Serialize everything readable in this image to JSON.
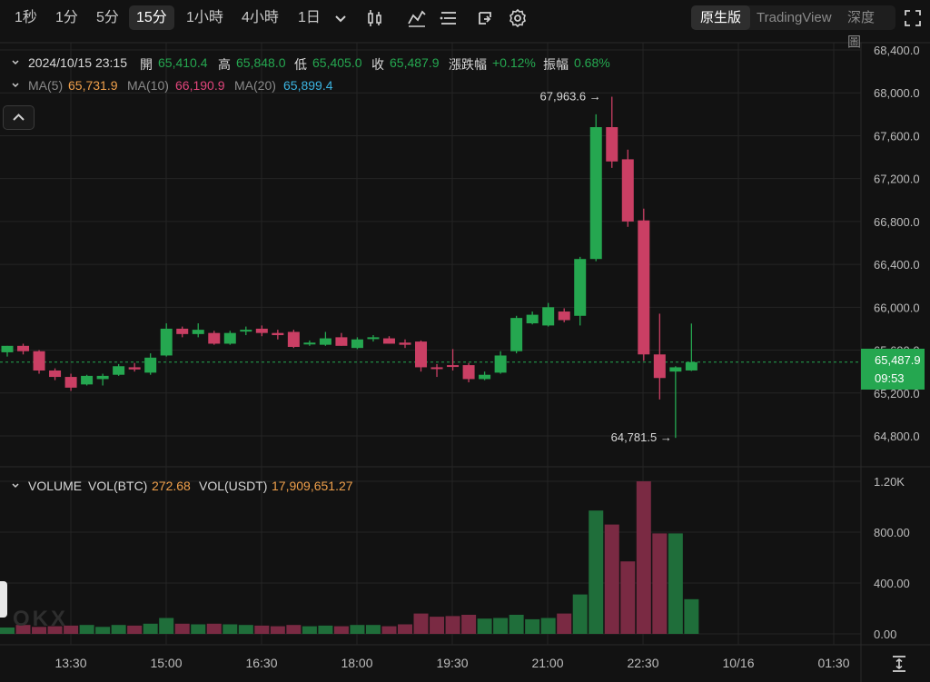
{
  "toolbar": {
    "timeframes": [
      "1秒",
      "1分",
      "5分",
      "15分",
      "1小時",
      "4小時",
      "1日"
    ],
    "active_timeframe": "15分",
    "icons": [
      "chevron-down-icon",
      "candlestick-type-icon",
      "indicator-icon",
      "drawing-tools-icon",
      "share-icon",
      "settings-icon"
    ],
    "views": [
      "原生版",
      "TradingView",
      "深度圖"
    ],
    "active_view": "原生版"
  },
  "ohlc": {
    "datetime": "2024/10/15 23:15",
    "open_label": "開",
    "open": "65,410.4",
    "high_label": "高",
    "high": "65,848.0",
    "low_label": "低",
    "low": "65,405.0",
    "close_label": "收",
    "close": "65,487.9",
    "change_label": "漲跌幅",
    "change": "+0.12%",
    "amplitude_label": "振幅",
    "amplitude": "0.68%"
  },
  "ma": {
    "ma5_label": "MA(5)",
    "ma5": "65,731.9",
    "ma10_label": "MA(10)",
    "ma10": "66,190.9",
    "ma20_label": "MA(20)",
    "ma20": "65,899.4"
  },
  "volume": {
    "label": "VOLUME",
    "btc_label": "VOL(BTC)",
    "btc": "272.68",
    "usdt_label": "VOL(USDT)",
    "usdt": "17,909,651.27"
  },
  "current_price": {
    "price": "65,487.9",
    "countdown": "09:53"
  },
  "extremes": {
    "high_label": "67,963.6",
    "low_label": "64,781.5"
  },
  "watermark": "OKX",
  "colors": {
    "up": "#25a750",
    "down": "#ca3f64",
    "ma5": "#f0a04b",
    "ma10": "#e0457b",
    "ma20": "#3bb3e0",
    "text": "#d9d9d9",
    "muted": "#8a8a8a",
    "grid": "#242424"
  },
  "chart_data": {
    "type": "candlestick",
    "price_axis": {
      "ticks": [
        "68,400.0",
        "68,000.0",
        "67,600.0",
        "67,200.0",
        "66,800.0",
        "66,400.0",
        "66,000.0",
        "65,600.0",
        "65,200.0",
        "64,800.0"
      ],
      "range": [
        64500,
        68440
      ]
    },
    "volume_axis": {
      "ticks": [
        "1.20K",
        "800.00",
        "400.00",
        "0.00"
      ],
      "range": [
        0,
        1200
      ]
    },
    "time_axis": {
      "ticks": [
        "13:30",
        "15:00",
        "16:30",
        "18:00",
        "19:30",
        "21:00",
        "22:30",
        "10/16",
        "01:30"
      ]
    },
    "candles": [
      {
        "o": 65580,
        "h": 65640,
        "l": 65540,
        "c": 65640,
        "v": 50
      },
      {
        "o": 65640,
        "h": 65660,
        "l": 65560,
        "c": 65590,
        "v": 70
      },
      {
        "o": 65590,
        "h": 65600,
        "l": 65380,
        "c": 65410,
        "v": 55
      },
      {
        "o": 65410,
        "h": 65430,
        "l": 65320,
        "c": 65350,
        "v": 60
      },
      {
        "o": 65350,
        "h": 65380,
        "l": 65220,
        "c": 65250,
        "v": 65
      },
      {
        "o": 65280,
        "h": 65370,
        "l": 65270,
        "c": 65360,
        "v": 70
      },
      {
        "o": 65330,
        "h": 65380,
        "l": 65270,
        "c": 65360,
        "v": 55
      },
      {
        "o": 65370,
        "h": 65470,
        "l": 65360,
        "c": 65450,
        "v": 70
      },
      {
        "o": 65440,
        "h": 65480,
        "l": 65400,
        "c": 65420,
        "v": 65
      },
      {
        "o": 65390,
        "h": 65570,
        "l": 65370,
        "c": 65530,
        "v": 80
      },
      {
        "o": 65550,
        "h": 65850,
        "l": 65540,
        "c": 65800,
        "v": 125
      },
      {
        "o": 65800,
        "h": 65820,
        "l": 65720,
        "c": 65750,
        "v": 80
      },
      {
        "o": 65750,
        "h": 65850,
        "l": 65720,
        "c": 65790,
        "v": 75
      },
      {
        "o": 65760,
        "h": 65780,
        "l": 65650,
        "c": 65660,
        "v": 80
      },
      {
        "o": 65660,
        "h": 65780,
        "l": 65650,
        "c": 65760,
        "v": 75
      },
      {
        "o": 65780,
        "h": 65820,
        "l": 65740,
        "c": 65790,
        "v": 70
      },
      {
        "o": 65800,
        "h": 65830,
        "l": 65730,
        "c": 65760,
        "v": 65
      },
      {
        "o": 65760,
        "h": 65790,
        "l": 65700,
        "c": 65740,
        "v": 60
      },
      {
        "o": 65770,
        "h": 65790,
        "l": 65620,
        "c": 65630,
        "v": 70
      },
      {
        "o": 65660,
        "h": 65690,
        "l": 65640,
        "c": 65670,
        "v": 60
      },
      {
        "o": 65650,
        "h": 65770,
        "l": 65640,
        "c": 65710,
        "v": 65
      },
      {
        "o": 65720,
        "h": 65760,
        "l": 65640,
        "c": 65640,
        "v": 60
      },
      {
        "o": 65620,
        "h": 65720,
        "l": 65610,
        "c": 65700,
        "v": 70
      },
      {
        "o": 65710,
        "h": 65740,
        "l": 65680,
        "c": 65720,
        "v": 70
      },
      {
        "o": 65710,
        "h": 65730,
        "l": 65660,
        "c": 65660,
        "v": 60
      },
      {
        "o": 65670,
        "h": 65700,
        "l": 65620,
        "c": 65650,
        "v": 75
      },
      {
        "o": 65680,
        "h": 65690,
        "l": 65400,
        "c": 65440,
        "v": 160
      },
      {
        "o": 65440,
        "h": 65470,
        "l": 65350,
        "c": 65430,
        "v": 135
      },
      {
        "o": 65460,
        "h": 65610,
        "l": 65410,
        "c": 65450,
        "v": 140
      },
      {
        "o": 65460,
        "h": 65480,
        "l": 65300,
        "c": 65330,
        "v": 150
      },
      {
        "o": 65330,
        "h": 65400,
        "l": 65320,
        "c": 65370,
        "v": 120
      },
      {
        "o": 65390,
        "h": 65590,
        "l": 65380,
        "c": 65550,
        "v": 125
      },
      {
        "o": 65590,
        "h": 65920,
        "l": 65570,
        "c": 65900,
        "v": 150
      },
      {
        "o": 65850,
        "h": 65960,
        "l": 65840,
        "c": 65930,
        "v": 115
      },
      {
        "o": 65830,
        "h": 66040,
        "l": 65820,
        "c": 66000,
        "v": 125
      },
      {
        "o": 65960,
        "h": 65990,
        "l": 65860,
        "c": 65880,
        "v": 160
      },
      {
        "o": 65920,
        "h": 66470,
        "l": 65830,
        "c": 66450,
        "v": 310
      },
      {
        "o": 66450,
        "h": 67800,
        "l": 66430,
        "c": 67680,
        "v": 970
      },
      {
        "o": 67680,
        "h": 67963.6,
        "l": 67300,
        "c": 67360,
        "v": 860
      },
      {
        "o": 67380,
        "h": 67470,
        "l": 66750,
        "c": 66800,
        "v": 570
      },
      {
        "o": 66810,
        "h": 66920,
        "l": 65500,
        "c": 65560,
        "v": 1200
      },
      {
        "o": 65560,
        "h": 65940,
        "l": 65140,
        "c": 65340,
        "v": 790
      },
      {
        "o": 65400,
        "h": 65450,
        "l": 64781.5,
        "c": 65440,
        "v": 790
      },
      {
        "o": 65410.4,
        "h": 65848,
        "l": 65405,
        "c": 65487.9,
        "v": 272.68
      }
    ]
  }
}
